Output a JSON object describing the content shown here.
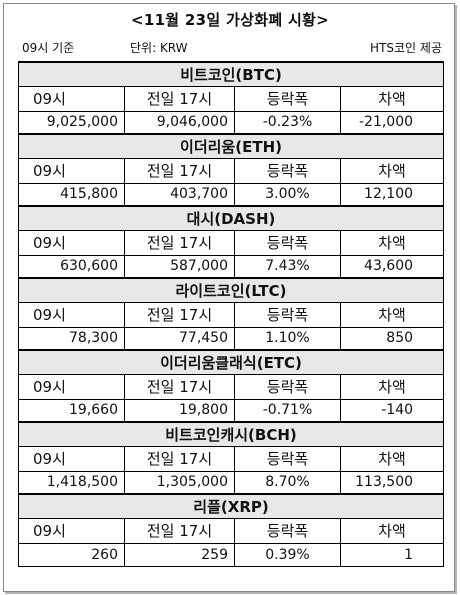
{
  "title": "<11월 23일 가상화폐 시황>",
  "meta": {
    "basis": "09시 기준",
    "unit": "단위: KRW",
    "source": "HTS코인 제공"
  },
  "headers": {
    "h09": "09시",
    "prev17": "전일 17시",
    "change": "등락폭",
    "diff": "차액"
  },
  "coins": [
    {
      "name": "비트코인(BTC)",
      "v09": "9,025,000",
      "prev17": "9,046,000",
      "change": "-0.23%",
      "diff": "-21,000"
    },
    {
      "name": "이더리움(ETH)",
      "v09": "415,800",
      "prev17": "403,700",
      "change": "3.00%",
      "diff": "12,100"
    },
    {
      "name": "대시(DASH)",
      "v09": "630,600",
      "prev17": "587,000",
      "change": "7.43%",
      "diff": "43,600"
    },
    {
      "name": "라이트코인(LTC)",
      "v09": "78,300",
      "prev17": "77,450",
      "change": "1.10%",
      "diff": "850"
    },
    {
      "name": "이더리움클래식(ETC)",
      "v09": "19,660",
      "prev17": "19,800",
      "change": "-0.71%",
      "diff": "-140"
    },
    {
      "name": "비트코인캐시(BCH)",
      "v09": "1,418,500",
      "prev17": "1,305,000",
      "change": "8.70%",
      "diff": "113,500"
    },
    {
      "name": "리플(XRP)",
      "v09": "260",
      "prev17": "259",
      "change": "0.39%",
      "diff": "1"
    }
  ]
}
